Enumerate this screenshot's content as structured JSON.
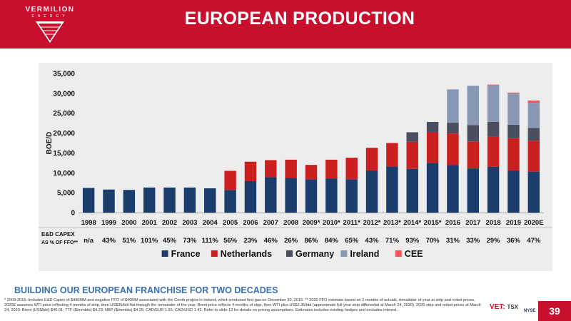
{
  "header": {
    "company_name": "VERMILION",
    "company_sub": "ENERGY",
    "title": "EUROPEAN PRODUCTION"
  },
  "colors": {
    "brand_red": "#c8102e",
    "panel_bg": "#ededed",
    "accent_blue": "#3a6fb0"
  },
  "chart_data": {
    "type": "bar",
    "stacked": true,
    "ylabel": "BOE/D",
    "ylim": [
      0,
      35000
    ],
    "ytick_labels": [
      "0",
      "5,000",
      "10,000",
      "15,000",
      "20,000",
      "25,000",
      "30,000",
      "35,000"
    ],
    "grid": false,
    "legend_position": "bottom",
    "categories": [
      "1998",
      "1999",
      "2000",
      "2001",
      "2002",
      "2003",
      "2004",
      "2005",
      "2006",
      "2007",
      "2008",
      "2009*",
      "2010*",
      "2011*",
      "2012*",
      "2013*",
      "2014*",
      "2015*",
      "2016",
      "2017",
      "2018",
      "2019",
      "2020E"
    ],
    "series": [
      {
        "name": "France",
        "color": "#1a3d6b",
        "values": [
          6200,
          5800,
          5700,
          6300,
          6300,
          6300,
          6100,
          5700,
          7900,
          8900,
          8700,
          8400,
          8600,
          8400,
          10600,
          11600,
          11000,
          12500,
          12000,
          11100,
          11500,
          10600,
          10300
        ]
      },
      {
        "name": "Netherlands",
        "color": "#cc1f1f",
        "values": [
          0,
          0,
          0,
          0,
          0,
          0,
          0,
          4800,
          4900,
          4300,
          4600,
          3600,
          4700,
          5400,
          5700,
          5900,
          6800,
          7700,
          7900,
          6800,
          7600,
          8100,
          7800
        ]
      },
      {
        "name": "Germany",
        "color": "#4a4e5e",
        "values": [
          0,
          0,
          0,
          0,
          0,
          0,
          0,
          0,
          0,
          0,
          0,
          0,
          0,
          0,
          0,
          0,
          2400,
          2600,
          2700,
          4100,
          3700,
          3400,
          3200
        ]
      },
      {
        "name": "Ireland",
        "color": "#8797b4",
        "values": [
          0,
          0,
          0,
          0,
          0,
          0,
          0,
          0,
          0,
          0,
          0,
          0,
          0,
          0,
          0,
          0,
          0,
          0,
          8400,
          9900,
          9200,
          7900,
          6300
        ]
      },
      {
        "name": "CEE",
        "color": "#f2555a",
        "values": [
          0,
          0,
          0,
          0,
          0,
          0,
          0,
          0,
          0,
          0,
          0,
          0,
          0,
          0,
          0,
          0,
          0,
          0,
          0,
          0,
          200,
          200,
          600
        ]
      }
    ],
    "capex_label_line1": "E&D CAPEX",
    "capex_label_line2": "AS % OF FFO**",
    "capex_values": [
      "n/a",
      "43%",
      "51%",
      "101%",
      "45%",
      "73%",
      "111%",
      "56%",
      "23%",
      "46%",
      "26%",
      "86%",
      "84%",
      "65%",
      "43%",
      "71%",
      "93%",
      "70%",
      "31%",
      "33%",
      "29%",
      "36%",
      "47%"
    ]
  },
  "footer": {
    "title": "BUILDING OUR EUROPEAN FRANCHISE FOR TWO DECADES",
    "footnote": "* 2009-2015: Includes E&D Capex of $496MM and negative FFO of $46MM associated with the Corrib project in Ireland, which produced first gas on December 30, 2015. ** 2020 FFO estimate based on 2 months of actuals, remainder of year at strip and noted prices. 2020E assumes WTI price reflecting 4 months of strip, then US$35/bbl flat through the remainder of the year. Brent price reflects 4 months of strip, then WTI plus US$2.35/bbl (approximate full-year strip differential at March 24, 2020). 2020 strip and noted prices at March 24, 2020: Brent (US$/bbl) $40.01; TTF ($/mmbtu) $4.23; NBP ($/mmbtu) $4.25; CAD/EUR 1.55; CAD/USD 1.42. Refer to slide 12 for details on pricing assumptions. Estimates includes existing hedges and excludes interest.",
    "vet_label": "VET:",
    "tsx_label": "TSX",
    "nyse_label": "NYSE",
    "page_number": "39"
  }
}
